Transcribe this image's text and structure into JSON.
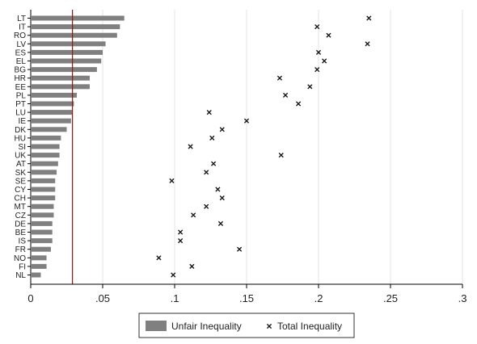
{
  "chart_data": {
    "type": "bar",
    "orientation": "horizontal",
    "categories": [
      "LT",
      "IT",
      "RO",
      "LV",
      "ES",
      "EL",
      "BG",
      "HR",
      "EE",
      "PL",
      "PT",
      "LU",
      "IE",
      "DK",
      "HU",
      "SI",
      "UK",
      "AT",
      "SK",
      "SE",
      "CY",
      "CH",
      "MT",
      "CZ",
      "DE",
      "BE",
      "IS",
      "FR",
      "NO",
      "FI",
      "NL"
    ],
    "series": [
      {
        "name": "Unfair Inequality",
        "mark": "bar",
        "values": [
          0.065,
          0.062,
          0.06,
          0.052,
          0.05,
          0.049,
          0.046,
          0.041,
          0.041,
          0.032,
          0.03,
          0.029,
          0.028,
          0.025,
          0.021,
          0.02,
          0.02,
          0.019,
          0.018,
          0.017,
          0.017,
          0.017,
          0.016,
          0.016,
          0.015,
          0.015,
          0.015,
          0.014,
          0.011,
          0.011,
          0.007
        ]
      },
      {
        "name": "Total Inequality",
        "mark": "x",
        "values": [
          0.235,
          0.199,
          0.207,
          0.234,
          0.2,
          0.204,
          0.199,
          0.173,
          0.194,
          0.177,
          0.186,
          0.124,
          0.15,
          0.133,
          0.126,
          0.111,
          0.174,
          0.127,
          0.122,
          0.098,
          0.13,
          0.133,
          0.122,
          0.113,
          0.132,
          0.104,
          0.104,
          0.145,
          0.089,
          0.112,
          0.099
        ]
      }
    ],
    "reference_line": 0.029,
    "xlim": [
      0,
      0.3
    ],
    "xticks": [
      0,
      0.05,
      0.1,
      0.15,
      0.2,
      0.25,
      0.3
    ],
    "xtick_labels": [
      "0",
      ".05",
      ".1",
      ".15",
      ".2",
      ".25",
      ".3"
    ],
    "grid": true,
    "legend_position": "bottom"
  },
  "colors": {
    "bar": "#808080",
    "marker": "#1a1a1a",
    "reference_line": "#8b1a1a",
    "grid": "#e6e6e6"
  }
}
